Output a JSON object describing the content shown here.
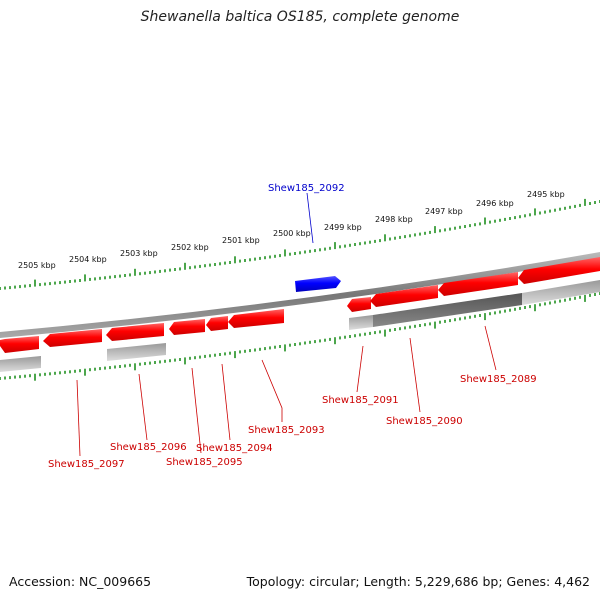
{
  "title": "Shewanella baltica OS185, complete genome",
  "footer": {
    "accession": "Accession: NC_009665",
    "summary": "Topology: circular; Length: 5,229,686 bp; Genes: 4,462"
  },
  "colors": {
    "forward_gene": "#0000ff",
    "reverse_gene": "#ff0000",
    "backbone": "#888888",
    "ticks": "#1f8f1f",
    "highlight_label": "#0000cc",
    "gene_label": "#cc0000"
  },
  "scale_labels": [
    "2505 kbp",
    "2504 kbp",
    "2503 kbp",
    "2502 kbp",
    "2501 kbp",
    "2500 kbp",
    "2499 kbp",
    "2498 kbp",
    "2497 kbp",
    "2496 kbp",
    "2495 kbp"
  ],
  "genes": [
    {
      "name": "Shew185_2092",
      "strand": "+"
    },
    {
      "name": "Shew185_2097",
      "strand": "-"
    },
    {
      "name": "Shew185_2096",
      "strand": "-"
    },
    {
      "name": "Shew185_2095",
      "strand": "-"
    },
    {
      "name": "Shew185_2094",
      "strand": "-"
    },
    {
      "name": "Shew185_2093",
      "strand": "-"
    },
    {
      "name": "Shew185_2091",
      "strand": "-"
    },
    {
      "name": "Shew185_2090",
      "strand": "-"
    },
    {
      "name": "Shew185_2089",
      "strand": "-"
    }
  ]
}
